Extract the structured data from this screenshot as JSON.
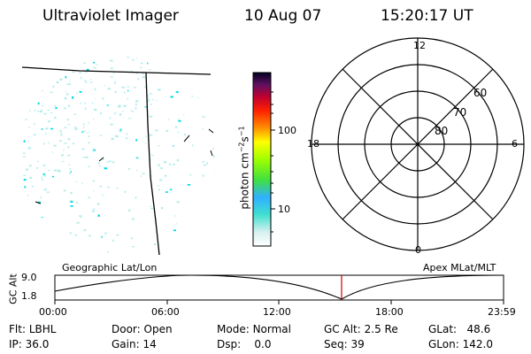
{
  "header": {
    "instrument": "Ultraviolet Imager",
    "date": "10 Aug 07",
    "time": "15:20:17 UT"
  },
  "colorbar": {
    "unit_prefix": "photon cm",
    "exp1": "−2",
    "mid": "s",
    "exp2": "−1",
    "ticks": [
      "100",
      "10"
    ]
  },
  "polar": {
    "mlt_labels": {
      "top": "12",
      "left": "18",
      "right": "6",
      "bottom": "0"
    },
    "mlat_labels": [
      "60",
      "70",
      "80"
    ]
  },
  "panels": {
    "left_label": "Geographic Lat/Lon",
    "right_label": "Apex MLat/MLT"
  },
  "altitude_plot": {
    "axis_label": "GC Alt",
    "y_ticks": [
      "9.0",
      "1.8"
    ],
    "x_ticks": [
      "00:00",
      "06:00",
      "12:00",
      "18:00",
      "23:59"
    ]
  },
  "info": {
    "filter": {
      "label": "Flt:",
      "value": "LBHL"
    },
    "ip": {
      "label": "IP:",
      "value": "36.0"
    },
    "door": {
      "label": "Door:",
      "value": "Open"
    },
    "gain": {
      "label": "Gain:",
      "value": "14"
    },
    "mode": {
      "label": "Mode:",
      "value": "Normal"
    },
    "dsp": {
      "label": "Dsp:",
      "value": "0.0"
    },
    "gc_alt": {
      "label": "GC Alt:",
      "value": "2.5 Re"
    },
    "seq": {
      "label": "Seq:",
      "value": "39"
    },
    "glat": {
      "label": "GLat:",
      "value": "48.6"
    },
    "glon": {
      "label": "GLon:",
      "value": "142.0"
    }
  },
  "colors": {
    "marker": "#cc0000",
    "speckle_cyan": "#00d8e8",
    "speckle_pale": "#b8ecec"
  }
}
